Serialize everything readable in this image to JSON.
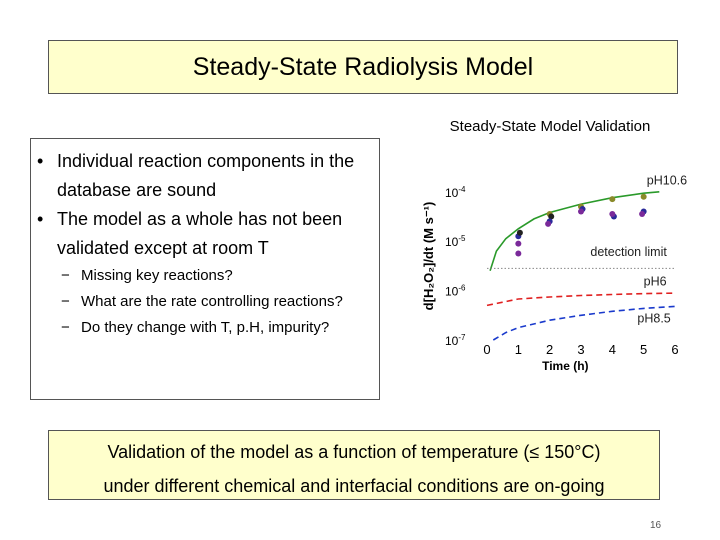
{
  "title": "Steady-State Radiolysis Model",
  "bullets": [
    "Individual reaction components in the database are sound",
    "The model as a whole has not been validated except at room T"
  ],
  "sub_bullets": [
    "Missing key reactions?",
    "What are the rate controlling reactions?",
    "Do they change with T, p.H, impurity?"
  ],
  "bottom": {
    "line1": "Validation of the model as a function of temperature (≤ 150°C)",
    "line2": "under different chemical and interfacial conditions are on-going"
  },
  "page_number": "16",
  "chart_data": {
    "type": "scatter",
    "title": "Steady-State Model Validation",
    "xlabel": "Time (h)",
    "ylabel": "d[H₂O₂]/dt (M s⁻¹)",
    "xlim": [
      0,
      6
    ],
    "ylim_log10": [
      -7,
      -3.6
    ],
    "xticks": [
      "0",
      "1",
      "2",
      "3",
      "4",
      "5",
      "6"
    ],
    "yticks": [
      {
        "label": "10-4",
        "exp": -4
      },
      {
        "label": "10-5",
        "exp": -5
      },
      {
        "label": "10-6",
        "exp": -6
      },
      {
        "label": "10-7",
        "exp": -7
      }
    ],
    "annotations": [
      {
        "text": "pH10.6",
        "x": 5.1,
        "y_log10": -3.85
      },
      {
        "text": "detection limit",
        "x": 3.3,
        "y_log10": -5.3
      },
      {
        "text": "pH6",
        "x": 5.0,
        "y_log10": -5.9
      },
      {
        "text": "pH8.5",
        "x": 4.8,
        "y_log10": -6.65
      }
    ],
    "curves": [
      {
        "name": "pH10.6",
        "style": "solid",
        "color": "#2a9a2a",
        "points": [
          [
            0.1,
            -5.6
          ],
          [
            0.3,
            -5.2
          ],
          [
            0.6,
            -4.95
          ],
          [
            1,
            -4.75
          ],
          [
            1.5,
            -4.55
          ],
          [
            2,
            -4.42
          ],
          [
            3,
            -4.25
          ],
          [
            4,
            -4.12
          ],
          [
            5,
            -4.03
          ],
          [
            5.5,
            -4.0
          ]
        ]
      },
      {
        "name": "detection limit",
        "style": "dotted",
        "color": "#888888",
        "points": [
          [
            0,
            -5.55
          ],
          [
            6,
            -5.55
          ]
        ]
      },
      {
        "name": "pH6",
        "style": "dashed",
        "color": "#e02020",
        "points": [
          [
            0,
            -6.3
          ],
          [
            1,
            -6.17
          ],
          [
            2,
            -6.13
          ],
          [
            3,
            -6.1
          ],
          [
            4,
            -6.08
          ],
          [
            5,
            -6.06
          ],
          [
            6,
            -6.05
          ]
        ]
      },
      {
        "name": "pH8.5",
        "style": "dashed",
        "color": "#1a3acc",
        "points": [
          [
            0.2,
            -7.0
          ],
          [
            0.6,
            -6.85
          ],
          [
            1,
            -6.75
          ],
          [
            2,
            -6.6
          ],
          [
            3,
            -6.5
          ],
          [
            4,
            -6.42
          ],
          [
            5,
            -6.36
          ],
          [
            6,
            -6.32
          ]
        ]
      }
    ],
    "points": [
      {
        "x": 1.0,
        "y_log10": -4.9,
        "color": "#2a2a9a"
      },
      {
        "x": 1.05,
        "y_log10": -4.83,
        "color": "#222222"
      },
      {
        "x": 1.0,
        "y_log10": -5.05,
        "color": "#7a2a9a"
      },
      {
        "x": 1.0,
        "y_log10": -5.25,
        "color": "#7a2a9a"
      },
      {
        "x": 2.0,
        "y_log10": -4.45,
        "color": "#8a8a2a"
      },
      {
        "x": 2.05,
        "y_log10": -4.5,
        "color": "#222222"
      },
      {
        "x": 2.0,
        "y_log10": -4.6,
        "color": "#2a2a9a"
      },
      {
        "x": 1.95,
        "y_log10": -4.65,
        "color": "#7a2a9a"
      },
      {
        "x": 3.0,
        "y_log10": -4.3,
        "color": "#8a8a2a"
      },
      {
        "x": 3.05,
        "y_log10": -4.35,
        "color": "#2a2a9a"
      },
      {
        "x": 3.0,
        "y_log10": -4.4,
        "color": "#7a2a9a"
      },
      {
        "x": 4.0,
        "y_log10": -4.15,
        "color": "#8a8a2a"
      },
      {
        "x": 4.05,
        "y_log10": -4.5,
        "color": "#2a2a9a"
      },
      {
        "x": 4.0,
        "y_log10": -4.45,
        "color": "#7a2a9a"
      },
      {
        "x": 5.0,
        "y_log10": -4.1,
        "color": "#8a8a2a"
      },
      {
        "x": 5.0,
        "y_log10": -4.4,
        "color": "#2a2a9a"
      },
      {
        "x": 4.95,
        "y_log10": -4.45,
        "color": "#7a2a9a"
      }
    ]
  }
}
